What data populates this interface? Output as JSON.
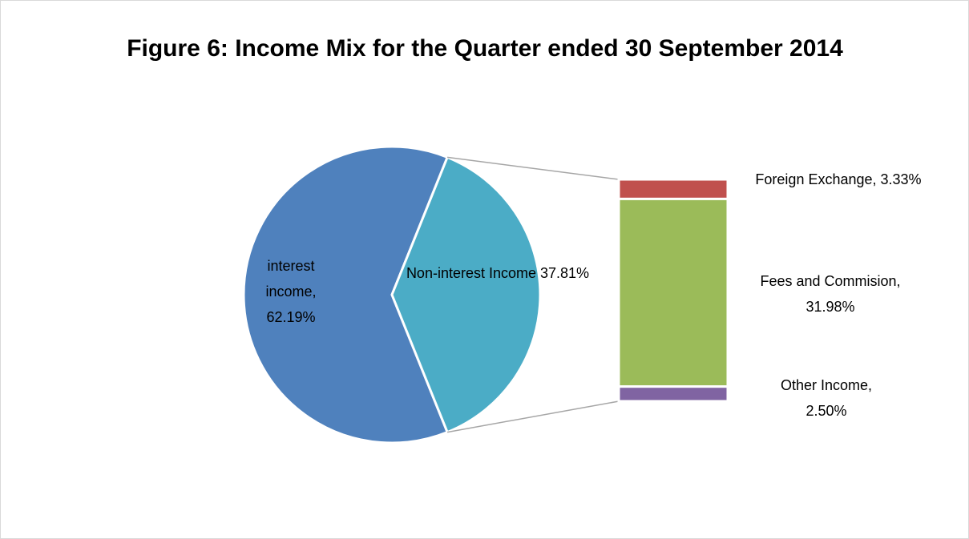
{
  "chart_data": {
    "type": "bar-of-pie",
    "title": "Figure 6: Income Mix for the Quarter ended 30 September 2014",
    "pie": {
      "values": [
        62.19,
        37.81
      ],
      "value_labels": [
        "interest income, 62.19%",
        "Non-interest Income 37.81%"
      ],
      "colors": [
        "#4f81bd",
        "#4bacc6"
      ]
    },
    "bar": {
      "values": [
        3.33,
        31.98,
        2.5
      ],
      "value_labels": [
        "Foreign Exchange, 3.33%",
        "Fees and Commision, 31.98%",
        "Other Income, 2.50%"
      ],
      "colors": [
        "#c0504d",
        "#9bbb59",
        "#8064a2"
      ]
    }
  }
}
